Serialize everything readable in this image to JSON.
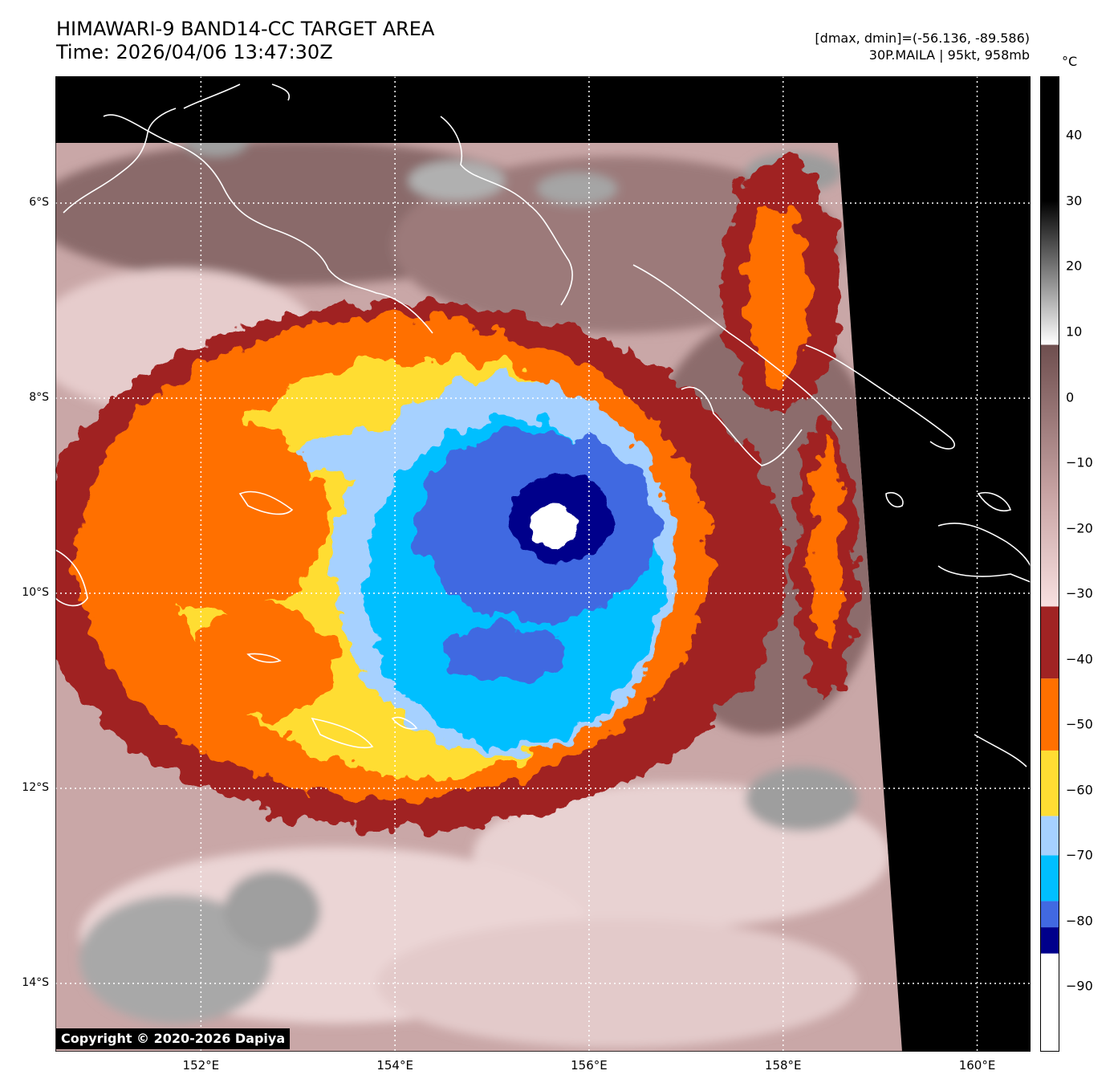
{
  "header": {
    "title_line1": "HIMAWARI-9 BAND14-CC TARGET AREA",
    "title_line2": "Time: 2026/04/06 13:47:30Z",
    "info_line1": "[dmax, dmin]=(-56.136, -89.586)",
    "info_line2": "30P.MAILA | 95kt, 958mb"
  },
  "axes": {
    "lat_labels": [
      "6°S",
      "8°S",
      "10°S",
      "12°S",
      "14°S"
    ],
    "lon_labels": [
      "152°E",
      "154°E",
      "156°E",
      "158°E",
      "160°E"
    ],
    "lat_values": [
      -6,
      -8,
      -10,
      -12,
      -14
    ],
    "lon_values": [
      152,
      154,
      156,
      158,
      160
    ],
    "lat_range": [
      -14.7,
      -4.7
    ],
    "lon_range": [
      150.5,
      160.55
    ],
    "grid": "dotted white"
  },
  "colorbar": {
    "unit": "°C",
    "range": [
      -100,
      49
    ],
    "tick_labels": [
      "40",
      "30",
      "20",
      "10",
      "0",
      "−10",
      "−20",
      "−30",
      "−40",
      "−50",
      "−60",
      "−70",
      "−80",
      "−90"
    ],
    "tick_values": [
      40,
      30,
      20,
      10,
      0,
      -10,
      -20,
      -30,
      -40,
      -50,
      -60,
      -70,
      -80,
      -90
    ],
    "bands": [
      {
        "from": -100,
        "to": -85,
        "color": "#ffffff"
      },
      {
        "from": -85,
        "to": -81,
        "color": "#00008b"
      },
      {
        "from": -81,
        "to": -77,
        "color": "#4169e1"
      },
      {
        "from": -77,
        "to": -70,
        "color": "#00bfff"
      },
      {
        "from": -70,
        "to": -64,
        "color": "#a6d1ff"
      },
      {
        "from": -64,
        "to": -54,
        "color": "#ffdd33"
      },
      {
        "from": -54,
        "to": -43,
        "color": "#ff7000"
      },
      {
        "from": -43,
        "to": -32,
        "color": "#a02323"
      }
    ],
    "gradient": [
      {
        "t": -32,
        "color": "#f8e0e0"
      },
      {
        "t": -15,
        "color": "#c8a4a4"
      },
      {
        "t": 8,
        "color": "#6e4e4e"
      },
      {
        "t": 8.01,
        "color": "#ffffff"
      },
      {
        "t": 30,
        "color": "#000000"
      },
      {
        "t": 49,
        "color": "#000000"
      }
    ]
  },
  "colors": {
    "background": "#000000",
    "coast": "#ffffff",
    "white_core": "#ffffff",
    "deep_blue": "#00008b",
    "royal_blue": "#4169e1",
    "sky_blue": "#00bfff",
    "light_blue": "#a6d1ff",
    "yellow": "#ffdd33",
    "orange": "#ff7000",
    "dark_red": "#a02323",
    "pink_cloud": "#e8cccc",
    "mauve_cloud": "#b99494",
    "brown_cloud": "#7d5a5a",
    "gray_cloud": "#a8a8a8"
  },
  "storm": {
    "center_lat": -9.3,
    "center_lon": 155.7
  },
  "copyright": "Copyright © 2020-2026 Dapiya"
}
